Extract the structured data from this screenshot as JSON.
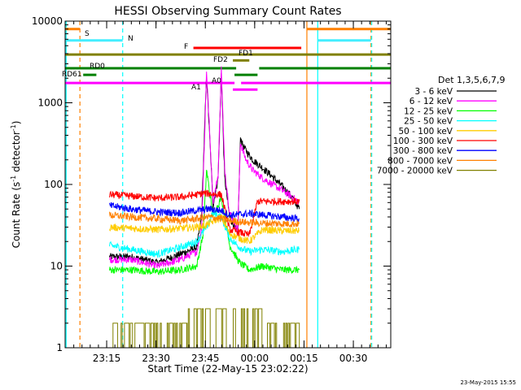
{
  "chart_data": {
    "type": "line",
    "title": "HESSI Observing Summary Count Rates",
    "xlabel": "Start Time (22-May-15 23:02:22)",
    "ylabel_main": "Count Rate (s",
    "ylabel_sup1": "-1",
    "ylabel_mid": " detector",
    "ylabel_sup2": "-1",
    "ylabel_end": ")",
    "y_scale": "log",
    "ylim": [
      1,
      10000
    ],
    "xlim_minutes": [
      0,
      99
    ],
    "x_ticks": [
      {
        "label": "23:15",
        "min": 12.63
      },
      {
        "label": "23:30",
        "min": 27.63
      },
      {
        "label": "23:45",
        "min": 42.63
      },
      {
        "label": "00:00",
        "min": 57.63
      },
      {
        "label": "00:15",
        "min": 72.63
      },
      {
        "label": "00:30",
        "min": 87.63
      }
    ],
    "y_ticks": [
      {
        "label": "1",
        "value": 1
      },
      {
        "label": "10",
        "value": 10
      },
      {
        "label": "100",
        "value": 100
      },
      {
        "label": "1000",
        "value": 1000
      },
      {
        "label": "10000",
        "value": 10000
      }
    ],
    "legend_title": "Det 1,3,5,6,7,9",
    "legend_position": "right",
    "series": [
      {
        "name": "3 - 6 keV",
        "color": "#000000",
        "x": [
          13.5,
          20,
          28,
          35,
          40,
          41.5,
          42.5,
          43,
          45,
          46.5,
          47.5,
          48.5,
          50,
          52.5,
          53.3,
          54,
          55,
          57,
          60,
          63,
          66,
          69,
          71.2
        ],
        "y": [
          13,
          13,
          11,
          14,
          17,
          40,
          600,
          2200,
          55,
          120,
          2400,
          120,
          40,
          25,
          380,
          300,
          260,
          200,
          160,
          125,
          95,
          70,
          50
        ]
      },
      {
        "name": "6 - 12 keV",
        "color": "#ff00ff",
        "x": [
          13.5,
          20,
          28,
          35,
          40,
          41.5,
          42.5,
          43,
          45,
          46.5,
          47.5,
          48.5,
          50,
          52.5,
          53.3,
          54,
          55,
          57,
          60,
          63,
          66,
          69,
          71.2
        ],
        "y": [
          12,
          12,
          10,
          12,
          15,
          30,
          500,
          2500,
          60,
          130,
          2600,
          160,
          45,
          28,
          330,
          260,
          200,
          150,
          120,
          100,
          85,
          70,
          60
        ]
      },
      {
        "name": "12 - 25 keV",
        "color": "#00ff00",
        "x": [
          13.5,
          20,
          28,
          35,
          40,
          42,
          43,
          45,
          47.5,
          50,
          53,
          56,
          60,
          66,
          71.2
        ],
        "y": [
          9,
          9,
          8.5,
          9,
          10,
          25,
          150,
          40,
          70,
          18,
          11,
          9,
          10,
          9,
          9
        ]
      },
      {
        "name": "25 - 50 keV",
        "color": "#00ffff",
        "x": [
          13.5,
          20,
          28,
          35,
          40,
          43,
          45,
          47.5,
          50,
          53,
          56,
          60,
          66,
          71.2
        ],
        "y": [
          18,
          16,
          14,
          17,
          20,
          30,
          45,
          40,
          22,
          17,
          15,
          16,
          15,
          16
        ]
      },
      {
        "name": "50 - 100 keV",
        "color": "#ffcc00",
        "x": [
          13.5,
          20,
          28,
          35,
          40,
          43,
          47.5,
          50,
          53,
          56,
          60,
          66,
          71.2
        ],
        "y": [
          30,
          29,
          28,
          29,
          30,
          32,
          40,
          25,
          22,
          20,
          28,
          27,
          27
        ]
      },
      {
        "name": "100 - 300 keV",
        "color": "#ff0000",
        "x": [
          13.5,
          20,
          28,
          35,
          40,
          42,
          47.5,
          50,
          53,
          56,
          58.5,
          66,
          71.2
        ],
        "y": [
          75,
          72,
          68,
          70,
          75,
          78,
          75,
          28,
          26,
          24,
          62,
          62,
          62
        ]
      },
      {
        "name": "300 - 800 keV",
        "color": "#0000ff",
        "x": [
          13.5,
          20,
          28,
          35,
          40,
          44,
          47.5,
          50,
          56,
          66,
          71.2
        ],
        "y": [
          55,
          50,
          46,
          45,
          48,
          50,
          48,
          42,
          44,
          40,
          38
        ]
      },
      {
        "name": "800 - 7000 keV",
        "color": "#ff8000",
        "x": [
          13.5,
          20,
          28,
          35,
          40,
          44,
          47.5,
          50,
          56,
          66,
          71.2
        ],
        "y": [
          42,
          40,
          38,
          36,
          38,
          40,
          38,
          36,
          34,
          33,
          33
        ]
      },
      {
        "name": "7000 - 20000 keV",
        "color": "#808000",
        "x": [
          13.5,
          37,
          37.1,
          60,
          60.1,
          71.2
        ],
        "y": [
          2,
          2,
          3,
          3,
          2,
          2
        ]
      }
    ],
    "flag_bars": [
      {
        "label": "S",
        "color": "#ff8000",
        "y": 8000,
        "segments": [
          [
            0,
            4.5
          ],
          [
            73.5,
            99
          ]
        ]
      },
      {
        "label": "N",
        "color": "#44eeff",
        "y": 5800,
        "segments": [
          [
            0,
            17.5
          ],
          [
            76.8,
            93
          ]
        ]
      },
      {
        "label": "F",
        "color": "#ff0000",
        "y": 4700,
        "segments": [
          [
            39,
            71.8
          ]
        ]
      },
      {
        "label": "FD1",
        "color": "#808000",
        "y": 3900,
        "segments": [
          [
            0,
            99
          ]
        ]
      },
      {
        "label": "FD2",
        "color": "#808000",
        "y": 3300,
        "segments": [
          [
            51,
            56
          ]
        ]
      },
      {
        "label": "RD0",
        "color": "#008000",
        "y": 2650,
        "segments": [
          [
            0,
            52
          ],
          [
            59,
            99
          ]
        ]
      },
      {
        "label": "RD61",
        "color": "#008000",
        "y": 2200,
        "segments": [
          [
            5.5,
            9.5
          ],
          [
            51.5,
            58.5
          ]
        ]
      },
      {
        "label": "A1",
        "color": "#ff00ff",
        "y": 1750,
        "segments": [
          [
            0,
            51.5
          ],
          [
            53.5,
            99
          ]
        ]
      },
      {
        "label": "A0",
        "color": "#ff00ff",
        "y": 1450,
        "segments": [
          [
            51,
            58.5
          ]
        ]
      }
    ],
    "vertical_lines": [
      {
        "min": 0.3,
        "color": "#00ffff",
        "style": "solid"
      },
      {
        "min": 4.5,
        "color": "#ff8000",
        "style": "dashed"
      },
      {
        "min": 17.5,
        "color": "#00ffff",
        "style": "dashed"
      },
      {
        "min": 73.5,
        "color": "#ff8000",
        "style": "solid"
      },
      {
        "min": 76.8,
        "color": "#00ffff",
        "style": "solid"
      },
      {
        "min": 93,
        "color": "#ff8000",
        "style": "dashed"
      },
      {
        "min": 93.2,
        "color": "#00ffff",
        "style": "dashed"
      }
    ]
  },
  "footer": {
    "timestamp": "23-May-2015 15:55"
  }
}
